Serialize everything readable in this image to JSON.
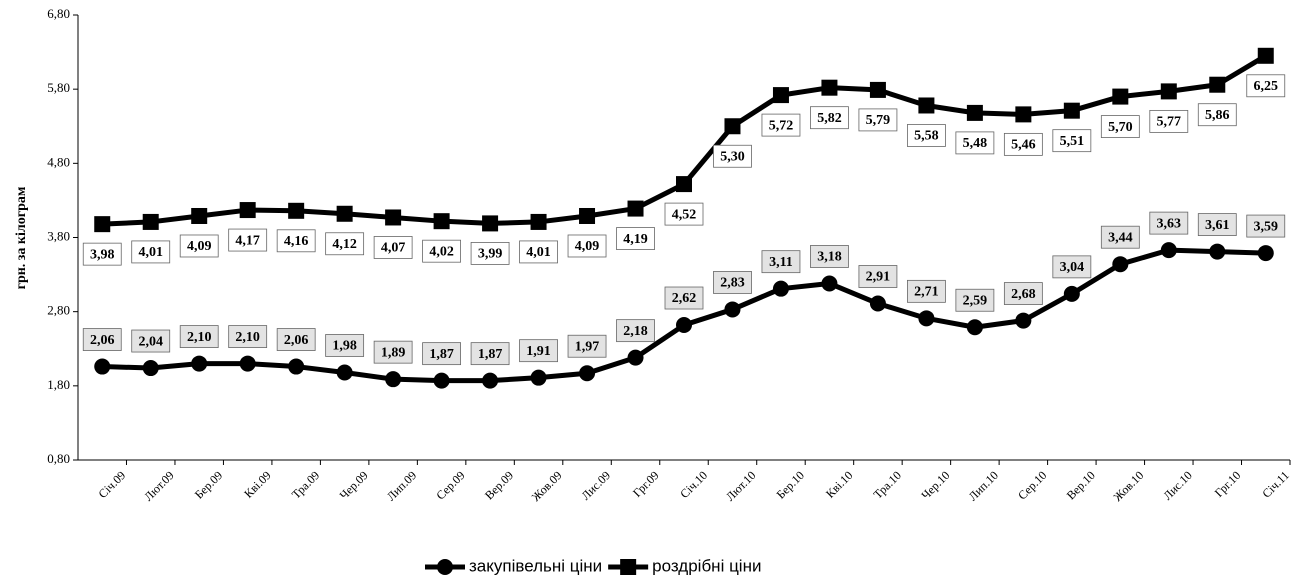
{
  "chart_data": {
    "type": "line",
    "y_label": "грн. за кілограм",
    "categories": [
      "Січ.09",
      "Лют.09",
      "Бер.09",
      "Кві.09",
      "Тра.09",
      "Чер.09",
      "Лип.09",
      "Сер.09",
      "Вер.09",
      "Жов.09",
      "Лис.09",
      "Грг.09",
      "Січ.10",
      "Лют.10",
      "Бер.10",
      "Кві.10",
      "Тра.10",
      "Чер.10",
      "Лип.10",
      "Сер.10",
      "Вер.10",
      "Жов.10",
      "Лис.10",
      "Грг.10",
      "Січ.11"
    ],
    "series": [
      {
        "name": "закупівельні ціни",
        "color": "#000000",
        "marker": "circle",
        "values": [
          2.06,
          2.04,
          2.1,
          2.1,
          2.06,
          1.98,
          1.89,
          1.87,
          1.87,
          1.91,
          1.97,
          2.18,
          2.62,
          2.83,
          3.11,
          3.18,
          2.91,
          2.71,
          2.59,
          2.68,
          3.04,
          3.44,
          3.63,
          3.61,
          3.59
        ],
        "value_labels": [
          "2,06",
          "2,04",
          "2,10",
          "2,10",
          "2,06",
          "1,98",
          "1,89",
          "1,87",
          "1,87",
          "1,91",
          "1,97",
          "2,18",
          "2,62",
          "2,83",
          "3,11",
          "3,18",
          "2,91",
          "2,71",
          "2,59",
          "2,68",
          "3,04",
          "3,44",
          "3,63",
          "3,61",
          "3,59"
        ]
      },
      {
        "name": "роздрібні ціни",
        "color": "#000000",
        "marker": "square",
        "values": [
          3.98,
          4.01,
          4.09,
          4.17,
          4.16,
          4.12,
          4.07,
          4.02,
          3.99,
          4.01,
          4.09,
          4.19,
          4.52,
          5.3,
          5.72,
          5.82,
          5.79,
          5.58,
          5.48,
          5.46,
          5.51,
          5.7,
          5.77,
          5.86,
          6.25
        ],
        "value_labels": [
          "3,98",
          "4,01",
          "4,09",
          "4,17",
          "4,16",
          "4,12",
          "4,07",
          "4,02",
          "3,99",
          "4,01",
          "4,09",
          "4,19",
          "4,52",
          "5,30",
          "5,72",
          "5,82",
          "5,79",
          "5,58",
          "5,48",
          "5,46",
          "5,51",
          "5,70",
          "5,77",
          "5,86",
          "6,25"
        ]
      }
    ],
    "ylim": [
      0.8,
      6.8
    ],
    "yticks": [
      {
        "value": 0.8,
        "label": "0,80"
      },
      {
        "value": 1.8,
        "label": "1,80"
      },
      {
        "value": 2.8,
        "label": "2,80"
      },
      {
        "value": 3.8,
        "label": "3,80"
      },
      {
        "value": 4.8,
        "label": "4,80"
      },
      {
        "value": 5.8,
        "label": "5,80"
      },
      {
        "value": 6.8,
        "label": "6,80"
      }
    ],
    "legend": "bottom"
  }
}
